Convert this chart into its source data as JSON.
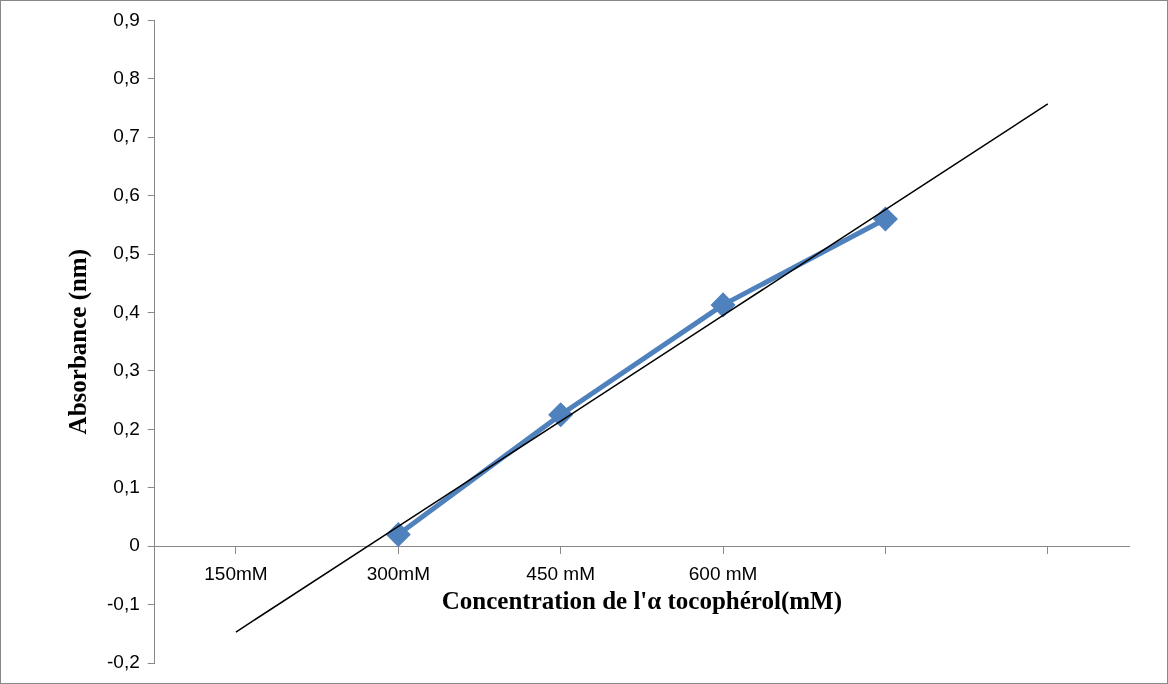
{
  "chart_data": {
    "type": "line",
    "xlabel": "Concentration de l'α tocophérol(mM)",
    "ylabel": "Absorbance (nm)",
    "categories": [
      "150mM",
      "300mM",
      "450 mM",
      "600 mM",
      null,
      null
    ],
    "series": [
      {
        "color": "#4f81bd",
        "values": [
          null,
          0.02,
          0.225,
          0.413,
          0.56,
          null
        ],
        "marker": "diamond"
      },
      {
        "type": "line",
        "color": "#000000",
        "values": [
          -0.147,
          0.034,
          0.214,
          0.395,
          0.576,
          0.757
        ],
        "marker": "none"
      }
    ],
    "ylim": [
      -0.2,
      0.9
    ],
    "yticks": [
      {
        "value": -0.2,
        "label": "-0,2"
      },
      {
        "value": -0.1,
        "label": "-0,1"
      },
      0,
      {
        "value": 0.1,
        "label": "0,1"
      },
      {
        "value": 0.2,
        "label": "0,2"
      },
      {
        "value": 0.3,
        "label": "0,3"
      },
      {
        "value": 0.4,
        "label": "0,4"
      },
      {
        "value": 0.5,
        "label": "0,5"
      },
      {
        "value": 0.6,
        "label": "0,6"
      },
      {
        "value": 0.7,
        "label": "0,7"
      },
      {
        "value": 0.8,
        "label": "0,8"
      },
      {
        "value": 0.9,
        "label": "0,9"
      }
    ],
    "grid": false,
    "legend": false
  }
}
